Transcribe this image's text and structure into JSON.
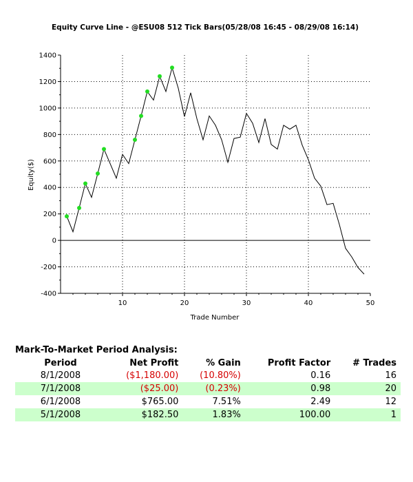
{
  "chart_data": {
    "type": "line",
    "title": "Equity Curve Line - @ESU08 512 Tick Bars(05/28/08 16:45 - 08/29/08 16:14)",
    "xlabel": "Trade Number",
    "ylabel": "Equity($)",
    "xlim": [
      0,
      50
    ],
    "ylim": [
      -400,
      1400
    ],
    "xticks": [
      10,
      20,
      30,
      40,
      50
    ],
    "yticks": [
      -400,
      -200,
      0,
      200,
      400,
      600,
      800,
      1000,
      1200,
      1400
    ],
    "grid": true,
    "series": [
      {
        "color": "#000000",
        "x": [
          1,
          2,
          3,
          4,
          5,
          6,
          7,
          8,
          9,
          10,
          11,
          12,
          13,
          14,
          15,
          16,
          17,
          18,
          19,
          20,
          21,
          22,
          23,
          24,
          25,
          26,
          27,
          28,
          29,
          30,
          31,
          32,
          33,
          34,
          35,
          36,
          37,
          38,
          39,
          40,
          41,
          42,
          43,
          44,
          45,
          46,
          47,
          48,
          49
        ],
        "y": [
          182,
          65,
          245,
          430,
          325,
          505,
          690,
          580,
          470,
          650,
          580,
          760,
          940,
          1125,
          1060,
          1240,
          1125,
          1305,
          1150,
          935,
          1115,
          920,
          760,
          940,
          870,
          760,
          590,
          770,
          780,
          960,
          885,
          740,
          920,
          725,
          690,
          870,
          840,
          870,
          720,
          610,
          470,
          410,
          270,
          280,
          120,
          -60,
          -125,
          -205,
          -255
        ]
      }
    ],
    "markers": {
      "color": "#22dd22",
      "points": [
        [
          1,
          182
        ],
        [
          3,
          245
        ],
        [
          4,
          430
        ],
        [
          6,
          505
        ],
        [
          7,
          690
        ],
        [
          12,
          760
        ],
        [
          13,
          940
        ],
        [
          14,
          1125
        ],
        [
          16,
          1240
        ],
        [
          18,
          1305
        ]
      ]
    }
  },
  "analysis": {
    "title": "Mark-To-Market Period Analysis:",
    "headers": {
      "period": "Period",
      "net_profit": "Net Profit",
      "gain": "% Gain",
      "profit_factor": "Profit Factor",
      "trades": "# Trades"
    },
    "rows": [
      {
        "period": "8/1/2008",
        "net_profit": "($1,180.00)",
        "gain": "(10.80%)",
        "profit_factor": "0.16",
        "trades": "16"
      },
      {
        "period": "7/1/2008",
        "net_profit": "($25.00)",
        "gain": "(0.23%)",
        "profit_factor": "0.98",
        "trades": "20"
      },
      {
        "period": "6/1/2008",
        "net_profit": "$765.00",
        "gain": "7.51%",
        "profit_factor": "2.49",
        "trades": "12"
      },
      {
        "period": "5/1/2008",
        "net_profit": "$182.50",
        "gain": "1.83%",
        "profit_factor": "100.00",
        "trades": "1"
      }
    ],
    "negative_color": "#d50000",
    "alt_row_color": "#ccffcc"
  }
}
